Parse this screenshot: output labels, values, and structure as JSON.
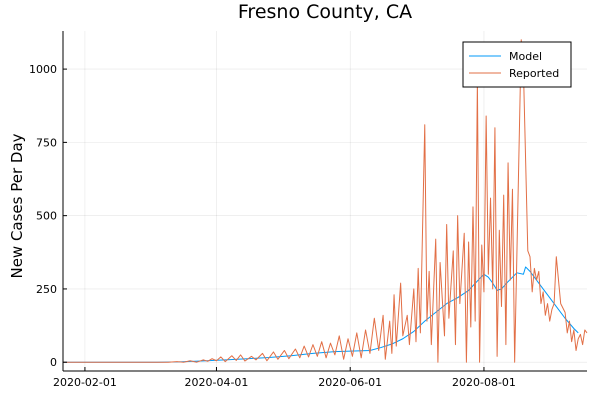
{
  "chart_data": {
    "type": "line",
    "title": "Fresno County, CA",
    "xlabel": "",
    "ylabel": "New Cases Per Day",
    "x_type": "date",
    "xlim": [
      "2020-01-22",
      "2020-09-17"
    ],
    "ylim": [
      -30,
      1130
    ],
    "x_ticks": [
      "2020-02-01",
      "2020-04-01",
      "2020-06-01",
      "2020-08-01"
    ],
    "y_ticks": [
      0,
      250,
      500,
      750,
      1000
    ],
    "grid": true,
    "legend_position": "top-right",
    "colors": {
      "model": "#009af9",
      "reported": "#e26f46"
    },
    "series": [
      {
        "name": "Model",
        "color": "#009af9",
        "points": [
          [
            "2020-01-22",
            0
          ],
          [
            "2020-02-15",
            0
          ],
          [
            "2020-03-05",
            0
          ],
          [
            "2020-03-15",
            1
          ],
          [
            "2020-03-25",
            4
          ],
          [
            "2020-04-05",
            8
          ],
          [
            "2020-04-15",
            12
          ],
          [
            "2020-04-25",
            16
          ],
          [
            "2020-05-05",
            22
          ],
          [
            "2020-05-15",
            30
          ],
          [
            "2020-05-25",
            36
          ],
          [
            "2020-06-01",
            38
          ],
          [
            "2020-06-10",
            40
          ],
          [
            "2020-06-15",
            50
          ],
          [
            "2020-06-20",
            62
          ],
          [
            "2020-06-25",
            80
          ],
          [
            "2020-06-30",
            105
          ],
          [
            "2020-07-05",
            140
          ],
          [
            "2020-07-10",
            170
          ],
          [
            "2020-07-15",
            200
          ],
          [
            "2020-07-20",
            220
          ],
          [
            "2020-07-25",
            245
          ],
          [
            "2020-07-30",
            285
          ],
          [
            "2020-08-01",
            300
          ],
          [
            "2020-08-03",
            290
          ],
          [
            "2020-08-05",
            270
          ],
          [
            "2020-08-07",
            245
          ],
          [
            "2020-08-09",
            250
          ],
          [
            "2020-08-12",
            275
          ],
          [
            "2020-08-16",
            305
          ],
          [
            "2020-08-19",
            300
          ],
          [
            "2020-08-20",
            325
          ],
          [
            "2020-08-22",
            310
          ],
          [
            "2020-08-25",
            280
          ],
          [
            "2020-08-30",
            230
          ],
          [
            "2020-09-03",
            190
          ],
          [
            "2020-09-07",
            150
          ],
          [
            "2020-09-11",
            115
          ],
          [
            "2020-09-13",
            100
          ]
        ]
      },
      {
        "name": "Reported",
        "color": "#e26f46",
        "points": [
          [
            "2020-01-22",
            0
          ],
          [
            "2020-02-20",
            0
          ],
          [
            "2020-03-10",
            0
          ],
          [
            "2020-03-14",
            2
          ],
          [
            "2020-03-17",
            0
          ],
          [
            "2020-03-20",
            5
          ],
          [
            "2020-03-23",
            0
          ],
          [
            "2020-03-26",
            8
          ],
          [
            "2020-03-28",
            3
          ],
          [
            "2020-03-30",
            12
          ],
          [
            "2020-04-01",
            5
          ],
          [
            "2020-04-03",
            18
          ],
          [
            "2020-04-05",
            2
          ],
          [
            "2020-04-08",
            22
          ],
          [
            "2020-04-10",
            6
          ],
          [
            "2020-04-12",
            25
          ],
          [
            "2020-04-14",
            4
          ],
          [
            "2020-04-17",
            20
          ],
          [
            "2020-04-19",
            8
          ],
          [
            "2020-04-22",
            30
          ],
          [
            "2020-04-24",
            5
          ],
          [
            "2020-04-27",
            35
          ],
          [
            "2020-04-29",
            10
          ],
          [
            "2020-05-02",
            40
          ],
          [
            "2020-05-04",
            12
          ],
          [
            "2020-05-07",
            45
          ],
          [
            "2020-05-09",
            15
          ],
          [
            "2020-05-11",
            55
          ],
          [
            "2020-05-13",
            18
          ],
          [
            "2020-05-15",
            60
          ],
          [
            "2020-05-17",
            20
          ],
          [
            "2020-05-19",
            70
          ],
          [
            "2020-05-21",
            15
          ],
          [
            "2020-05-23",
            65
          ],
          [
            "2020-05-25",
            25
          ],
          [
            "2020-05-27",
            90
          ],
          [
            "2020-05-29",
            10
          ],
          [
            "2020-05-31",
            80
          ],
          [
            "2020-06-02",
            20
          ],
          [
            "2020-06-04",
            100
          ],
          [
            "2020-06-06",
            15
          ],
          [
            "2020-06-08",
            110
          ],
          [
            "2020-06-10",
            30
          ],
          [
            "2020-06-12",
            150
          ],
          [
            "2020-06-14",
            40
          ],
          [
            "2020-06-16",
            160
          ],
          [
            "2020-06-17",
            10
          ],
          [
            "2020-06-19",
            140
          ],
          [
            "2020-06-20",
            30
          ],
          [
            "2020-06-21",
            230
          ],
          [
            "2020-06-22",
            55
          ],
          [
            "2020-06-24",
            270
          ],
          [
            "2020-06-25",
            90
          ],
          [
            "2020-06-27",
            160
          ],
          [
            "2020-06-28",
            60
          ],
          [
            "2020-06-30",
            250
          ],
          [
            "2020-07-01",
            70
          ],
          [
            "2020-07-02",
            320
          ],
          [
            "2020-07-03",
            100
          ],
          [
            "2020-07-05",
            810
          ],
          [
            "2020-07-06",
            140
          ],
          [
            "2020-07-07",
            310
          ],
          [
            "2020-07-08",
            60
          ],
          [
            "2020-07-10",
            420
          ],
          [
            "2020-07-11",
            0
          ],
          [
            "2020-07-12",
            340
          ],
          [
            "2020-07-14",
            90
          ],
          [
            "2020-07-15",
            470
          ],
          [
            "2020-07-16",
            150
          ],
          [
            "2020-07-18",
            380
          ],
          [
            "2020-07-19",
            60
          ],
          [
            "2020-07-20",
            500
          ],
          [
            "2020-07-21",
            200
          ],
          [
            "2020-07-23",
            440
          ],
          [
            "2020-07-24",
            0
          ],
          [
            "2020-07-25",
            410
          ],
          [
            "2020-07-26",
            120
          ],
          [
            "2020-07-27",
            530
          ],
          [
            "2020-07-28",
            140
          ],
          [
            "2020-07-29",
            960
          ],
          [
            "2020-07-30",
            0
          ],
          [
            "2020-07-31",
            400
          ],
          [
            "2020-08-01",
            240
          ],
          [
            "2020-08-02",
            840
          ],
          [
            "2020-08-03",
            300
          ],
          [
            "2020-08-04",
            560
          ],
          [
            "2020-08-05",
            250
          ],
          [
            "2020-08-06",
            800
          ],
          [
            "2020-08-07",
            20
          ],
          [
            "2020-08-08",
            450
          ],
          [
            "2020-08-09",
            190
          ],
          [
            "2020-08-10",
            570
          ],
          [
            "2020-08-11",
            60
          ],
          [
            "2020-08-12",
            680
          ],
          [
            "2020-08-13",
            280
          ],
          [
            "2020-08-14",
            590
          ],
          [
            "2020-08-15",
            0
          ],
          [
            "2020-08-16",
            360
          ],
          [
            "2020-08-18",
            1100
          ],
          [
            "2020-08-19",
            1000
          ],
          [
            "2020-08-20",
            690
          ],
          [
            "2020-08-21",
            380
          ],
          [
            "2020-08-22",
            360
          ],
          [
            "2020-08-23",
            240
          ],
          [
            "2020-08-24",
            320
          ],
          [
            "2020-08-25",
            280
          ],
          [
            "2020-08-26",
            310
          ],
          [
            "2020-08-27",
            200
          ],
          [
            "2020-08-28",
            240
          ],
          [
            "2020-08-29",
            160
          ],
          [
            "2020-08-30",
            200
          ],
          [
            "2020-08-31",
            140
          ],
          [
            "2020-09-01",
            180
          ],
          [
            "2020-09-02",
            200
          ],
          [
            "2020-09-03",
            360
          ],
          [
            "2020-09-05",
            200
          ],
          [
            "2020-09-07",
            170
          ],
          [
            "2020-09-08",
            100
          ],
          [
            "2020-09-09",
            140
          ],
          [
            "2020-09-10",
            70
          ],
          [
            "2020-09-11",
            110
          ],
          [
            "2020-09-12",
            40
          ],
          [
            "2020-09-13",
            80
          ],
          [
            "2020-09-14",
            95
          ],
          [
            "2020-09-15",
            60
          ],
          [
            "2020-09-16",
            110
          ],
          [
            "2020-09-17",
            100
          ]
        ]
      }
    ]
  }
}
